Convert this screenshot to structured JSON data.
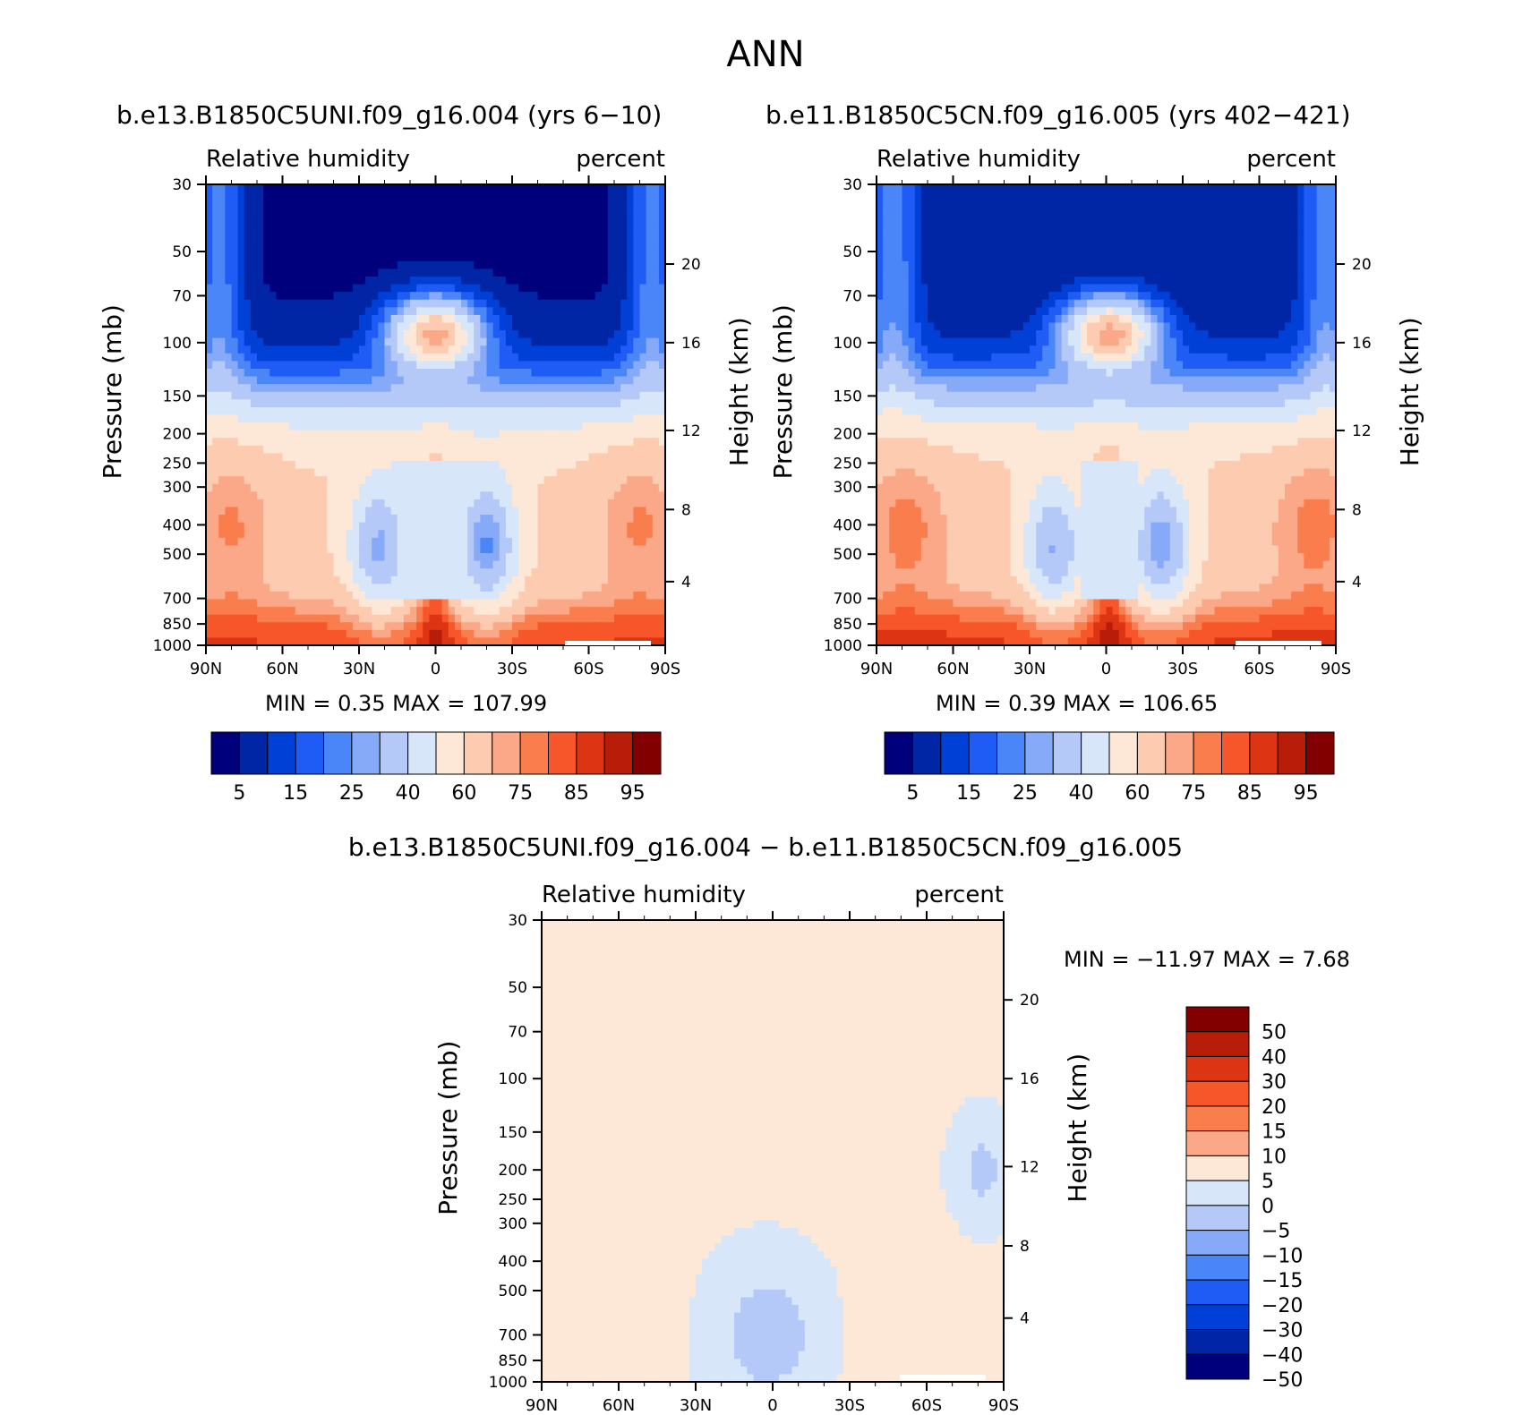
{
  "main_title": "ANN",
  "panels": [
    {
      "id": "run1",
      "title": "b.e13.B1850C5UNI.f09_g16.004 (yrs 6−10)",
      "left_label": "Relative humidity",
      "right_label": "percent",
      "min_text": "MIN =    0.35   MAX = 107.99"
    },
    {
      "id": "run2",
      "title": "b.e11.B1850C5CN.f09_g16.005 (yrs 402−421)",
      "left_label": "Relative humidity",
      "right_label": "percent",
      "min_text": "MIN =    0.39   MAX = 106.65"
    },
    {
      "id": "diff",
      "title": "b.e13.B1850C5UNI.f09_g16.004 − b.e11.B1850C5CN.f09_g16.005",
      "left_label": "Relative humidity",
      "right_label": "percent",
      "min_text": "MIN = −11.97   MAX =    7.68"
    }
  ],
  "chart_data": [
    {
      "type": "heatmap",
      "title": "b.e13.B1850C5UNI.f09_g16.004 (yrs 6−10)",
      "variable": "Relative humidity",
      "units": "percent",
      "xlabel": "",
      "ylabel": "Pressure (mb)",
      "y2label": "Height (km)",
      "x_ticks": [
        "90N",
        "60N",
        "30N",
        "0",
        "30S",
        "60S",
        "90S"
      ],
      "y_ticks": [
        30,
        50,
        70,
        100,
        150,
        200,
        250,
        300,
        400,
        500,
        700,
        850,
        1000
      ],
      "y2_ticks": [
        20,
        16,
        12,
        8,
        4
      ],
      "min": 0.35,
      "max": 107.99,
      "colorbar_labels": [
        "5",
        "15",
        "25",
        "40",
        "60",
        "75",
        "85",
        "95"
      ]
    },
    {
      "type": "heatmap",
      "title": "b.e11.B1850C5CN.f09_g16.005 (yrs 402−421)",
      "variable": "Relative humidity",
      "units": "percent",
      "xlabel": "",
      "ylabel": "Pressure (mb)",
      "y2label": "Height (km)",
      "x_ticks": [
        "90N",
        "60N",
        "30N",
        "0",
        "30S",
        "60S",
        "90S"
      ],
      "y_ticks": [
        30,
        50,
        70,
        100,
        150,
        200,
        250,
        300,
        400,
        500,
        700,
        850,
        1000
      ],
      "y2_ticks": [
        20,
        16,
        12,
        8,
        4
      ],
      "min": 0.39,
      "max": 106.65,
      "colorbar_labels": [
        "5",
        "15",
        "25",
        "40",
        "60",
        "75",
        "85",
        "95"
      ]
    },
    {
      "type": "heatmap",
      "title": "b.e13.B1850C5UNI.f09_g16.004 − b.e11.B1850C5CN.f09_g16.005",
      "variable": "Relative humidity",
      "units": "percent",
      "xlabel": "",
      "ylabel": "Pressure (mb)",
      "y2label": "Height (km)",
      "x_ticks": [
        "90N",
        "60N",
        "30N",
        "0",
        "30S",
        "60S",
        "90S"
      ],
      "y_ticks": [
        30,
        50,
        70,
        100,
        150,
        200,
        250,
        300,
        400,
        500,
        700,
        850,
        1000
      ],
      "y2_ticks": [
        20,
        16,
        12,
        8,
        4
      ],
      "min": -11.97,
      "max": 7.68,
      "colorbar_labels": [
        "50",
        "40",
        "30",
        "20",
        "15",
        "10",
        "5",
        "0",
        "−5",
        "−10",
        "−15",
        "−20",
        "−30",
        "−40",
        "−50"
      ]
    }
  ],
  "colors": {
    "abs_scale": [
      "#00007d",
      "#0026a6",
      "#0040d6",
      "#1e5cf5",
      "#4b86f8",
      "#86aaf7",
      "#b4c9f8",
      "#d7e6f9",
      "#fde8d8",
      "#fccbb0",
      "#fba888",
      "#fa7d4d",
      "#f6562a",
      "#dd3413",
      "#b81d0a",
      "#830000"
    ],
    "diff_scale_top_to_bottom": [
      "#830000",
      "#b81d0a",
      "#dd3413",
      "#f6562a",
      "#fa7d4d",
      "#fba888",
      "#fde8d8",
      "#d7e6f9",
      "#b4c9f8",
      "#86aaf7",
      "#4b86f8",
      "#1e5cf5",
      "#0040d6",
      "#0026a6",
      "#00007d"
    ]
  }
}
